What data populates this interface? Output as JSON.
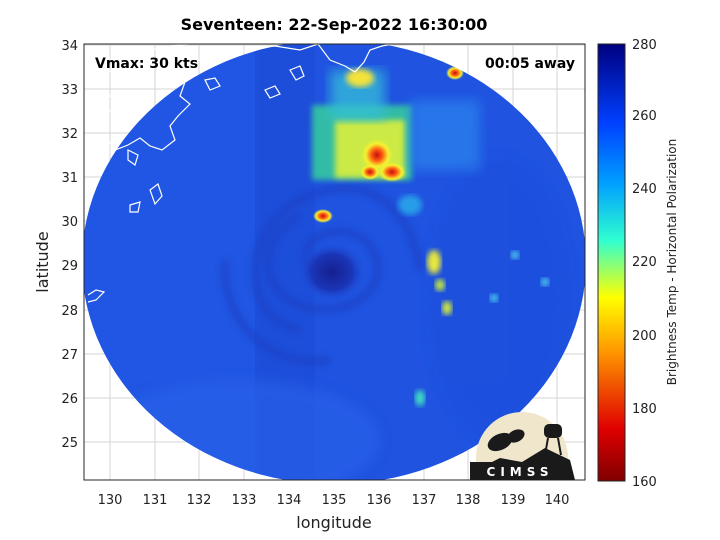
{
  "title": "Seventeen: 22-Sep-2022 16:30:00",
  "xlabel": "longitude",
  "ylabel": "latitude",
  "annotations": {
    "vmax": "Vmax: 30 kts",
    "away": "00:05 away"
  },
  "x_ticks": [
    "130",
    "131",
    "132",
    "133",
    "134",
    "135",
    "136",
    "137",
    "138",
    "139",
    "140"
  ],
  "y_ticks": [
    "25",
    "26",
    "27",
    "28",
    "29",
    "30",
    "31",
    "32",
    "33",
    "34"
  ],
  "colorbar": {
    "label": "Brightness Temp - Horizontal Polarization",
    "ticks": [
      "160",
      "180",
      "200",
      "220",
      "240",
      "260",
      "280"
    ],
    "min": 160,
    "max": 280
  },
  "logo_text": "CIMSS",
  "map": {
    "lon_range": [
      129.4,
      140.8
    ],
    "lat_range": [
      24.1,
      34.1
    ],
    "swath_center": [
      135.1,
      29.1
    ],
    "storm_center": [
      134.6,
      28.9
    ],
    "colors": {
      "background_field": "#1f53e0",
      "eye": "#14239a",
      "convection_warm": "#f2ef2a",
      "convection_hot": "#d71a12",
      "coast": "#ffffff"
    }
  }
}
